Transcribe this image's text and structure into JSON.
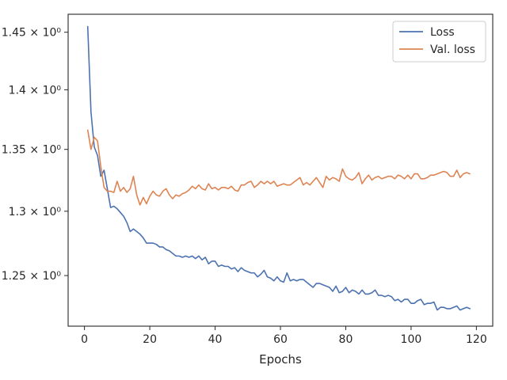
{
  "chart_data": {
    "type": "line",
    "xlabel": "Epochs",
    "ylabel": "",
    "y_scale": "log",
    "xlim": [
      -5,
      125
    ],
    "ylim": [
      1.212,
      1.466
    ],
    "x_ticks": [
      0,
      20,
      40,
      60,
      80,
      100,
      120
    ],
    "x_tick_labels": [
      "0",
      "20",
      "40",
      "60",
      "80",
      "100",
      "120"
    ],
    "y_ticks": [
      1.25,
      1.3,
      1.35,
      1.4,
      1.45
    ],
    "y_tick_labels": [
      "1.25 × 10⁰",
      "1.3 × 10⁰",
      "1.35 × 10⁰",
      "1.4 × 10⁰",
      "1.45 × 10⁰"
    ],
    "grid": false,
    "legend_position": "top-right",
    "series": [
      {
        "name": "Loss",
        "color": "#4c72b0",
        "x": [
          1,
          2,
          3,
          4,
          5,
          6,
          7,
          8,
          9,
          10,
          11,
          12,
          13,
          14,
          15,
          16,
          17,
          18,
          19,
          20,
          21,
          22,
          23,
          24,
          25,
          26,
          27,
          28,
          29,
          30,
          31,
          32,
          33,
          34,
          35,
          36,
          37,
          38,
          39,
          40,
          41,
          42,
          43,
          44,
          45,
          46,
          47,
          48,
          49,
          50,
          51,
          52,
          53,
          54,
          55,
          56,
          57,
          58,
          59,
          60,
          61,
          62,
          63,
          64,
          65,
          66,
          67,
          68,
          69,
          70,
          71,
          72,
          73,
          74,
          75,
          76,
          77,
          78,
          79,
          80,
          81,
          82,
          83,
          84,
          85,
          86,
          87,
          88,
          89,
          90,
          91,
          92,
          93,
          94,
          95,
          96,
          97,
          98,
          99,
          100,
          101,
          102,
          103,
          104,
          105,
          106,
          107,
          108,
          109,
          110,
          111,
          112,
          113,
          114,
          115,
          116,
          117,
          118
        ],
        "values": [
          1.455,
          1.381,
          1.352,
          1.345,
          1.328,
          1.333,
          1.318,
          1.303,
          1.304,
          1.302,
          1.299,
          1.296,
          1.291,
          1.284,
          1.286,
          1.284,
          1.282,
          1.279,
          1.275,
          1.275,
          1.275,
          1.274,
          1.272,
          1.272,
          1.27,
          1.269,
          1.267,
          1.265,
          1.265,
          1.264,
          1.265,
          1.264,
          1.265,
          1.263,
          1.265,
          1.262,
          1.264,
          1.259,
          1.261,
          1.261,
          1.257,
          1.258,
          1.257,
          1.257,
          1.255,
          1.256,
          1.253,
          1.256,
          1.254,
          1.253,
          1.252,
          1.252,
          1.249,
          1.251,
          1.254,
          1.249,
          1.248,
          1.246,
          1.249,
          1.246,
          1.245,
          1.252,
          1.246,
          1.247,
          1.246,
          1.247,
          1.247,
          1.245,
          1.243,
          1.241,
          1.244,
          1.244,
          1.243,
          1.242,
          1.241,
          1.238,
          1.242,
          1.237,
          1.238,
          1.241,
          1.237,
          1.239,
          1.238,
          1.236,
          1.239,
          1.236,
          1.236,
          1.237,
          1.239,
          1.235,
          1.235,
          1.234,
          1.235,
          1.234,
          1.231,
          1.232,
          1.23,
          1.232,
          1.232,
          1.229,
          1.229,
          1.231,
          1.232,
          1.228,
          1.229,
          1.229,
          1.23,
          1.224,
          1.226,
          1.226,
          1.225,
          1.225,
          1.226,
          1.227,
          1.224,
          1.225,
          1.226,
          1.225
        ]
      },
      {
        "name": "Val. loss",
        "color": "#dd8452",
        "x": [
          1,
          2,
          3,
          4,
          5,
          6,
          7,
          8,
          9,
          10,
          11,
          12,
          13,
          14,
          15,
          16,
          17,
          18,
          19,
          20,
          21,
          22,
          23,
          24,
          25,
          26,
          27,
          28,
          29,
          30,
          31,
          32,
          33,
          34,
          35,
          36,
          37,
          38,
          39,
          40,
          41,
          42,
          43,
          44,
          45,
          46,
          47,
          48,
          49,
          50,
          51,
          52,
          53,
          54,
          55,
          56,
          57,
          58,
          59,
          60,
          61,
          62,
          63,
          64,
          65,
          66,
          67,
          68,
          69,
          70,
          71,
          72,
          73,
          74,
          75,
          76,
          77,
          78,
          79,
          80,
          81,
          82,
          83,
          84,
          85,
          86,
          87,
          88,
          89,
          90,
          91,
          92,
          93,
          94,
          95,
          96,
          97,
          98,
          99,
          100,
          101,
          102,
          103,
          104,
          105,
          106,
          107,
          108,
          109,
          110,
          111,
          112,
          113,
          114,
          115,
          116,
          117,
          118
        ],
        "values": [
          1.366,
          1.35,
          1.36,
          1.357,
          1.336,
          1.319,
          1.316,
          1.316,
          1.315,
          1.324,
          1.316,
          1.319,
          1.315,
          1.318,
          1.328,
          1.313,
          1.305,
          1.311,
          1.306,
          1.312,
          1.316,
          1.313,
          1.312,
          1.316,
          1.318,
          1.313,
          1.31,
          1.313,
          1.312,
          1.314,
          1.315,
          1.317,
          1.32,
          1.318,
          1.321,
          1.318,
          1.317,
          1.322,
          1.318,
          1.319,
          1.317,
          1.319,
          1.319,
          1.318,
          1.32,
          1.317,
          1.316,
          1.321,
          1.321,
          1.323,
          1.324,
          1.319,
          1.321,
          1.324,
          1.322,
          1.324,
          1.322,
          1.324,
          1.32,
          1.321,
          1.322,
          1.321,
          1.321,
          1.323,
          1.325,
          1.327,
          1.321,
          1.323,
          1.321,
          1.324,
          1.327,
          1.323,
          1.319,
          1.328,
          1.325,
          1.327,
          1.326,
          1.324,
          1.334,
          1.328,
          1.326,
          1.325,
          1.327,
          1.331,
          1.322,
          1.326,
          1.329,
          1.325,
          1.327,
          1.328,
          1.326,
          1.327,
          1.328,
          1.328,
          1.326,
          1.329,
          1.328,
          1.326,
          1.329,
          1.326,
          1.33,
          1.33,
          1.326,
          1.326,
          1.327,
          1.329,
          1.329,
          1.33,
          1.331,
          1.332,
          1.331,
          1.328,
          1.328,
          1.333,
          1.327,
          1.33,
          1.331,
          1.33
        ]
      }
    ]
  }
}
